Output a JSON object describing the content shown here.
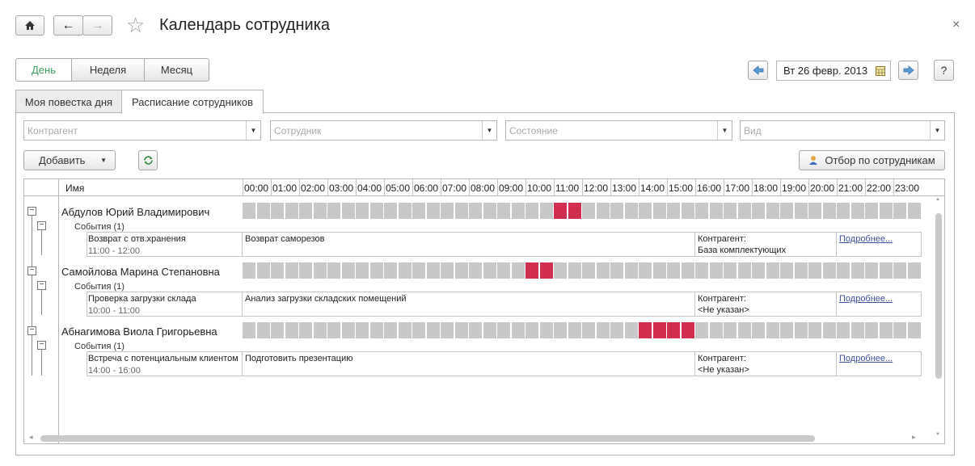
{
  "window": {
    "title": "Календарь сотрудника",
    "close": "×"
  },
  "nav": {
    "home": "home-icon",
    "back": "←",
    "forward": "→",
    "star": "☆"
  },
  "period": {
    "day": "День",
    "week": "Неделя",
    "month": "Месяц",
    "active": "day"
  },
  "date_picker": {
    "value": "Вт 26 февр. 2013",
    "help": "?"
  },
  "tabs": [
    {
      "label": "Моя повестка дня"
    },
    {
      "label": "Расписание сотрудников"
    }
  ],
  "filters": {
    "counterparty": "Контрагент",
    "employee": "Сотрудник",
    "state": "Состояние",
    "kind": "Вид"
  },
  "toolbar": {
    "add": "Добавить",
    "filter_employees": "Отбор по сотрудникам"
  },
  "grid": {
    "name_header": "Имя",
    "hours": [
      "00:00",
      "01:00",
      "02:00",
      "03:00",
      "04:00",
      "05:00",
      "06:00",
      "07:00",
      "08:00",
      "09:00",
      "10:00",
      "11:00",
      "12:00",
      "13:00",
      "14:00",
      "15:00",
      "16:00",
      "17:00",
      "18:00",
      "19:00",
      "20:00",
      "21:00",
      "22:00",
      "23:00"
    ],
    "employees": [
      {
        "name": "Абдулов Юрий Владимирович",
        "events_label": "События (1)",
        "busy": [
          22,
          23
        ],
        "event": {
          "title": "Возврат с отв.хранения",
          "time": "11:00 - 12:00",
          "description": "Возврат саморезов",
          "counterparty_label": "Контрагент:",
          "counterparty": "База комплектующих",
          "more": "Подробнее..."
        }
      },
      {
        "name": "Самойлова Марина Степановна",
        "events_label": "События (1)",
        "busy": [
          20,
          21
        ],
        "event": {
          "title": "Проверка загрузки склада",
          "time": "10:00 - 11:00",
          "description": "Анализ загрузки складских помещений",
          "counterparty_label": "Контрагент:",
          "counterparty": "<Не указан>",
          "more": "Подробнее..."
        }
      },
      {
        "name": "Абнагимова Виола Григорьевна",
        "events_label": "События (1)",
        "busy": [
          28,
          29,
          30,
          31
        ],
        "event": {
          "title": "Встреча с потенциальным клиентом",
          "time": "14:00 - 16:00",
          "description": "Подготовить презентацию",
          "counterparty_label": "Контрагент:",
          "counterparty": "<Не указан>",
          "more": "Подробнее..."
        }
      }
    ]
  }
}
